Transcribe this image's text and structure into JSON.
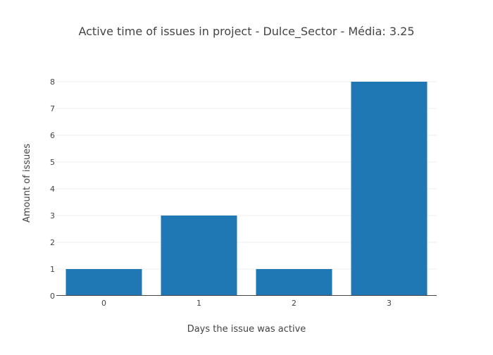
{
  "chart_data": {
    "type": "bar",
    "title": "Active time of issues in project - Dulce_Sector - Média: 3.25",
    "xlabel": "Days the issue was active",
    "ylabel": "Amount of issues",
    "categories": [
      "0",
      "1",
      "2",
      "3"
    ],
    "values": [
      1,
      3,
      1,
      8
    ],
    "ylim": [
      0,
      8
    ],
    "yticks": [
      "0",
      "1",
      "2",
      "3",
      "4",
      "5",
      "6",
      "7",
      "8"
    ],
    "grid": true,
    "legend": "none",
    "bar_color": "#1f77b4"
  }
}
